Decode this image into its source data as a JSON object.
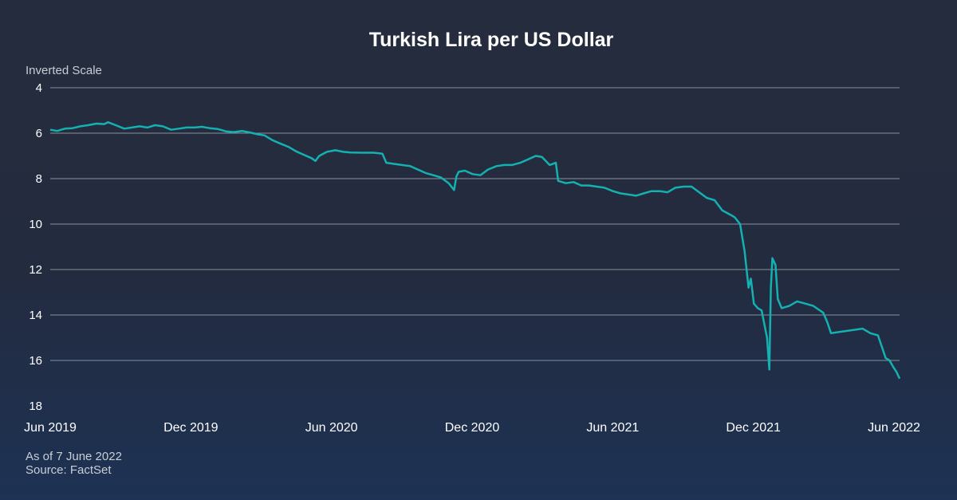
{
  "chart_data": {
    "type": "line",
    "title": "Turkish Lira per US Dollar",
    "scale_note": "Inverted Scale",
    "y_inverted": true,
    "ylim": [
      4,
      18
    ],
    "y_ticks": [
      4,
      6,
      8,
      10,
      12,
      14,
      16,
      18
    ],
    "x_ticks": [
      "Jun 2019",
      "Dec 2019",
      "Jun 2020",
      "Dec 2020",
      "Jun 2021",
      "Dec 2021",
      "Jun 2022"
    ],
    "xlim": [
      "2019-06-01",
      "2022-06-07"
    ],
    "grid": true,
    "line_color": "#14b1b1",
    "series": [
      {
        "points": [
          [
            "2019-06-01",
            5.85
          ],
          [
            "2019-06-10",
            5.9
          ],
          [
            "2019-06-20",
            5.8
          ],
          [
            "2019-06-30",
            5.78
          ],
          [
            "2019-07-10",
            5.7
          ],
          [
            "2019-07-20",
            5.65
          ],
          [
            "2019-07-31",
            5.58
          ],
          [
            "2019-08-10",
            5.6
          ],
          [
            "2019-08-15",
            5.52
          ],
          [
            "2019-08-25",
            5.65
          ],
          [
            "2019-09-05",
            5.8
          ],
          [
            "2019-09-15",
            5.75
          ],
          [
            "2019-09-25",
            5.7
          ],
          [
            "2019-10-05",
            5.75
          ],
          [
            "2019-10-15",
            5.65
          ],
          [
            "2019-10-25",
            5.7
          ],
          [
            "2019-11-05",
            5.85
          ],
          [
            "2019-11-15",
            5.8
          ],
          [
            "2019-11-25",
            5.75
          ],
          [
            "2019-12-05",
            5.75
          ],
          [
            "2019-12-15",
            5.72
          ],
          [
            "2019-12-25",
            5.78
          ],
          [
            "2020-01-05",
            5.82
          ],
          [
            "2020-01-15",
            5.92
          ],
          [
            "2020-01-25",
            5.95
          ],
          [
            "2020-02-05",
            5.9
          ],
          [
            "2020-02-15",
            5.97
          ],
          [
            "2020-02-25",
            6.05
          ],
          [
            "2020-03-05",
            6.1
          ],
          [
            "2020-03-15",
            6.3
          ],
          [
            "2020-03-25",
            6.45
          ],
          [
            "2020-04-05",
            6.6
          ],
          [
            "2020-04-15",
            6.8
          ],
          [
            "2020-04-25",
            6.95
          ],
          [
            "2020-05-05",
            7.1
          ],
          [
            "2020-05-10",
            7.22
          ],
          [
            "2020-05-15",
            7.0
          ],
          [
            "2020-05-25",
            6.82
          ],
          [
            "2020-06-05",
            6.75
          ],
          [
            "2020-06-15",
            6.82
          ],
          [
            "2020-06-25",
            6.85
          ],
          [
            "2020-07-10",
            6.86
          ],
          [
            "2020-07-25",
            6.86
          ],
          [
            "2020-08-05",
            6.9
          ],
          [
            "2020-08-10",
            7.3
          ],
          [
            "2020-08-20",
            7.35
          ],
          [
            "2020-08-30",
            7.4
          ],
          [
            "2020-09-10",
            7.45
          ],
          [
            "2020-09-20",
            7.6
          ],
          [
            "2020-09-30",
            7.75
          ],
          [
            "2020-10-10",
            7.85
          ],
          [
            "2020-10-20",
            7.95
          ],
          [
            "2020-10-30",
            8.2
          ],
          [
            "2020-11-06",
            8.5
          ],
          [
            "2020-11-09",
            7.9
          ],
          [
            "2020-11-12",
            7.7
          ],
          [
            "2020-11-20",
            7.65
          ],
          [
            "2020-11-30",
            7.8
          ],
          [
            "2020-12-10",
            7.85
          ],
          [
            "2020-12-20",
            7.6
          ],
          [
            "2020-12-31",
            7.45
          ],
          [
            "2021-01-10",
            7.4
          ],
          [
            "2021-01-20",
            7.4
          ],
          [
            "2021-01-31",
            7.3
          ],
          [
            "2021-02-10",
            7.15
          ],
          [
            "2021-02-20",
            7.0
          ],
          [
            "2021-02-28",
            7.05
          ],
          [
            "2021-03-10",
            7.4
          ],
          [
            "2021-03-18",
            7.3
          ],
          [
            "2021-03-21",
            8.1
          ],
          [
            "2021-03-31",
            8.2
          ],
          [
            "2021-04-10",
            8.15
          ],
          [
            "2021-04-20",
            8.3
          ],
          [
            "2021-04-30",
            8.3
          ],
          [
            "2021-05-10",
            8.35
          ],
          [
            "2021-05-20",
            8.4
          ],
          [
            "2021-05-31",
            8.55
          ],
          [
            "2021-06-10",
            8.65
          ],
          [
            "2021-06-20",
            8.7
          ],
          [
            "2021-06-30",
            8.75
          ],
          [
            "2021-07-10",
            8.65
          ],
          [
            "2021-07-20",
            8.55
          ],
          [
            "2021-07-31",
            8.55
          ],
          [
            "2021-08-10",
            8.6
          ],
          [
            "2021-08-20",
            8.4
          ],
          [
            "2021-08-31",
            8.35
          ],
          [
            "2021-09-10",
            8.35
          ],
          [
            "2021-09-20",
            8.6
          ],
          [
            "2021-09-30",
            8.85
          ],
          [
            "2021-10-10",
            8.95
          ],
          [
            "2021-10-20",
            9.4
          ],
          [
            "2021-10-31",
            9.6
          ],
          [
            "2021-11-05",
            9.7
          ],
          [
            "2021-11-12",
            10.0
          ],
          [
            "2021-11-18",
            11.2
          ],
          [
            "2021-11-23",
            12.8
          ],
          [
            "2021-11-26",
            12.4
          ],
          [
            "2021-11-30",
            13.5
          ],
          [
            "2021-12-05",
            13.7
          ],
          [
            "2021-12-10",
            13.8
          ],
          [
            "2021-12-17",
            15.0
          ],
          [
            "2021-12-20",
            16.4
          ],
          [
            "2021-12-22",
            12.8
          ],
          [
            "2021-12-24",
            11.5
          ],
          [
            "2021-12-28",
            11.8
          ],
          [
            "2021-12-31",
            13.3
          ],
          [
            "2022-01-05",
            13.7
          ],
          [
            "2022-01-15",
            13.6
          ],
          [
            "2022-01-25",
            13.4
          ],
          [
            "2022-02-05",
            13.5
          ],
          [
            "2022-02-15",
            13.6
          ],
          [
            "2022-02-28",
            13.9
          ],
          [
            "2022-03-05",
            14.3
          ],
          [
            "2022-03-10",
            14.8
          ],
          [
            "2022-03-20",
            14.75
          ],
          [
            "2022-03-31",
            14.7
          ],
          [
            "2022-04-10",
            14.65
          ],
          [
            "2022-04-20",
            14.6
          ],
          [
            "2022-04-30",
            14.8
          ],
          [
            "2022-05-10",
            14.9
          ],
          [
            "2022-05-15",
            15.4
          ],
          [
            "2022-05-20",
            15.9
          ],
          [
            "2022-05-25",
            16.0
          ],
          [
            "2022-05-30",
            16.3
          ],
          [
            "2022-06-03",
            16.5
          ],
          [
            "2022-06-07",
            16.8
          ]
        ]
      }
    ]
  },
  "footnote": {
    "as_of": "As of 7 June 2022",
    "source": "Source: FactSet"
  }
}
